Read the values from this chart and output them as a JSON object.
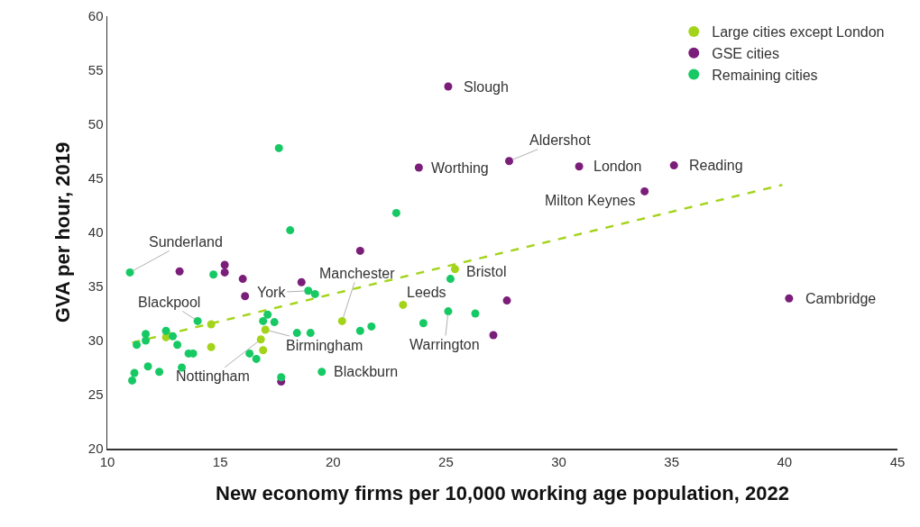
{
  "chart_data": {
    "type": "scatter",
    "xlabel": "New economy firms per 10,000 working age population, 2022",
    "ylabel": "GVA per hour, 2019",
    "xlim": [
      10,
      45
    ],
    "xticks": [
      10,
      15,
      20,
      25,
      30,
      35,
      40,
      45
    ],
    "ylim": [
      20,
      60
    ],
    "yticks": [
      20,
      25,
      30,
      35,
      40,
      45,
      50,
      55,
      60
    ],
    "grid": false,
    "legend": "top right",
    "marker": "circle",
    "series": [
      {
        "name": "Large cities except London",
        "color": "#a3d41a",
        "x": [
          12.6,
          14.6,
          14.6,
          17.0,
          16.8,
          16.9,
          20.4,
          23.1,
          25.4
        ],
        "values": [
          30.3,
          31.5,
          29.4,
          31.0,
          30.1,
          29.1,
          31.8,
          33.3,
          36.6
        ]
      },
      {
        "name": "GSE cities",
        "color": "#7b1e7a",
        "x": [
          25.1,
          23.8,
          27.8,
          30.9,
          35.1,
          33.8,
          40.2,
          27.7,
          27.1,
          21.2,
          18.6,
          13.2,
          15.2,
          15.2,
          16.0,
          16.1,
          17.7
        ],
        "values": [
          53.5,
          46.0,
          46.6,
          46.1,
          46.2,
          43.8,
          33.9,
          33.7,
          30.5,
          38.3,
          35.4,
          36.4,
          37.0,
          36.3,
          35.7,
          34.1,
          26.2
        ]
      },
      {
        "name": "Remaining cities",
        "color": "#17c964",
        "x": [
          11.0,
          17.6,
          18.1,
          22.8,
          14.7,
          14.0,
          18.9,
          19.2,
          17.1,
          16.9,
          17.4,
          11.7,
          11.7,
          11.3,
          12.6,
          12.9,
          13.1,
          13.6,
          13.8,
          11.8,
          12.3,
          11.2,
          11.1,
          13.3,
          16.3,
          16.6,
          17.7,
          18.4,
          19.0,
          21.2,
          21.7,
          24.0,
          25.1,
          26.3,
          25.2,
          19.5
        ],
        "values": [
          36.3,
          47.8,
          40.2,
          41.8,
          36.1,
          31.8,
          34.6,
          34.3,
          32.4,
          31.8,
          31.7,
          30.6,
          30.0,
          29.6,
          30.9,
          30.4,
          29.6,
          28.8,
          28.8,
          27.6,
          27.1,
          27.0,
          26.3,
          27.5,
          28.8,
          28.3,
          26.6,
          30.7,
          30.7,
          30.9,
          31.3,
          31.6,
          32.7,
          32.5,
          35.7,
          27.1
        ]
      },
      {
        "type": "line",
        "line_style": "dashed",
        "marker": "none",
        "color": "#a3d41a",
        "x": [
          11.1,
          39.9
        ],
        "values": [
          29.8,
          44.4
        ]
      }
    ],
    "annotations": [
      {
        "text": "Slough",
        "x": 25.1,
        "y": 53.5
      },
      {
        "text": "Worthing",
        "x": 23.8,
        "y": 46.0
      },
      {
        "text": "Aldershot",
        "x": 27.8,
        "y": 46.6
      },
      {
        "text": "London",
        "x": 30.9,
        "y": 46.1
      },
      {
        "text": "Reading",
        "x": 35.1,
        "y": 46.2
      },
      {
        "text": "Milton Keynes",
        "x": 33.8,
        "y": 43.8
      },
      {
        "text": "Cambridge",
        "x": 40.2,
        "y": 33.9
      },
      {
        "text": "Bristol",
        "x": 25.4,
        "y": 36.6
      },
      {
        "text": "Leeds",
        "x": 23.1,
        "y": 33.3
      },
      {
        "text": "Manchester",
        "x": 20.4,
        "y": 31.8
      },
      {
        "text": "Birmingham",
        "x": 17.0,
        "y": 31.0
      },
      {
        "text": "Nottingham",
        "x": 16.8,
        "y": 30.1
      },
      {
        "text": "Blackpool",
        "x": 14.0,
        "y": 31.8
      },
      {
        "text": "York",
        "x": 18.9,
        "y": 34.6
      },
      {
        "text": "Sunderland",
        "x": 11.0,
        "y": 36.3
      },
      {
        "text": "Warrington",
        "x": 25.1,
        "y": 32.7
      },
      {
        "text": "Blackburn",
        "x": 19.5,
        "y": 27.1
      }
    ]
  }
}
